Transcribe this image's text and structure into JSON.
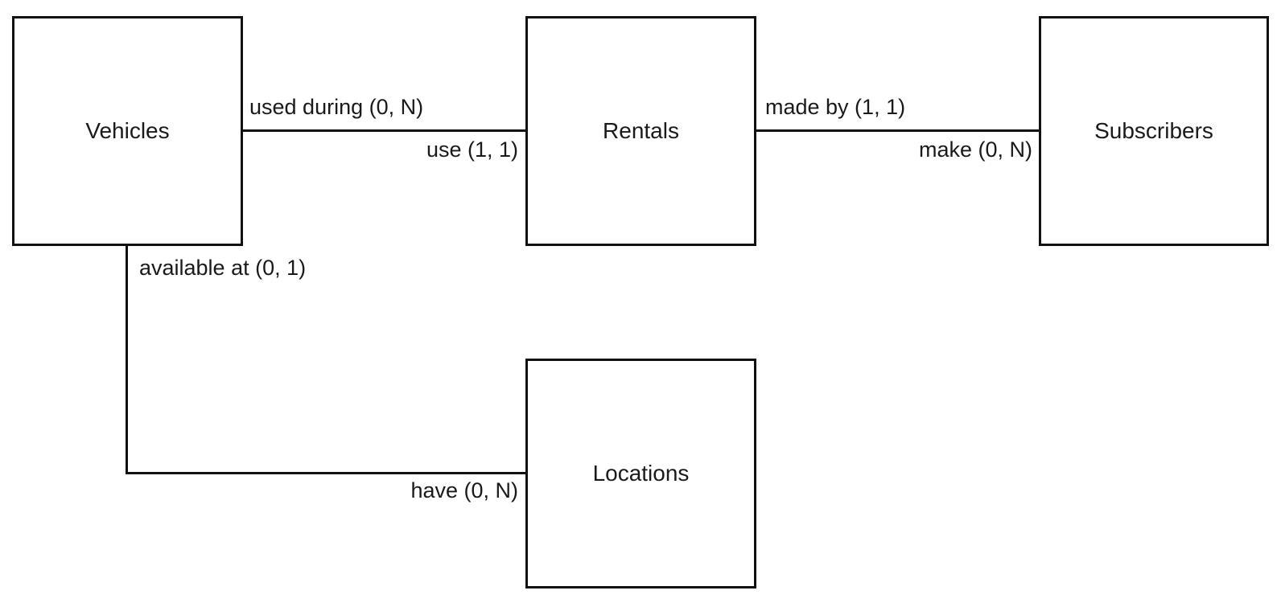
{
  "entities": {
    "vehicles": "Vehicles",
    "rentals": "Rentals",
    "subscribers": "Subscribers",
    "locations": "Locations"
  },
  "relationships": {
    "vehicles_rentals": {
      "vehicle_side": "used during (0, N)",
      "rental_side": "use (1, 1)"
    },
    "rentals_subscribers": {
      "rental_side": "made by (1, 1)",
      "subscriber_side": "make (0, N)"
    },
    "vehicles_locations": {
      "vehicle_side": "available at (0, 1)",
      "location_side": "have (0, N)"
    }
  }
}
